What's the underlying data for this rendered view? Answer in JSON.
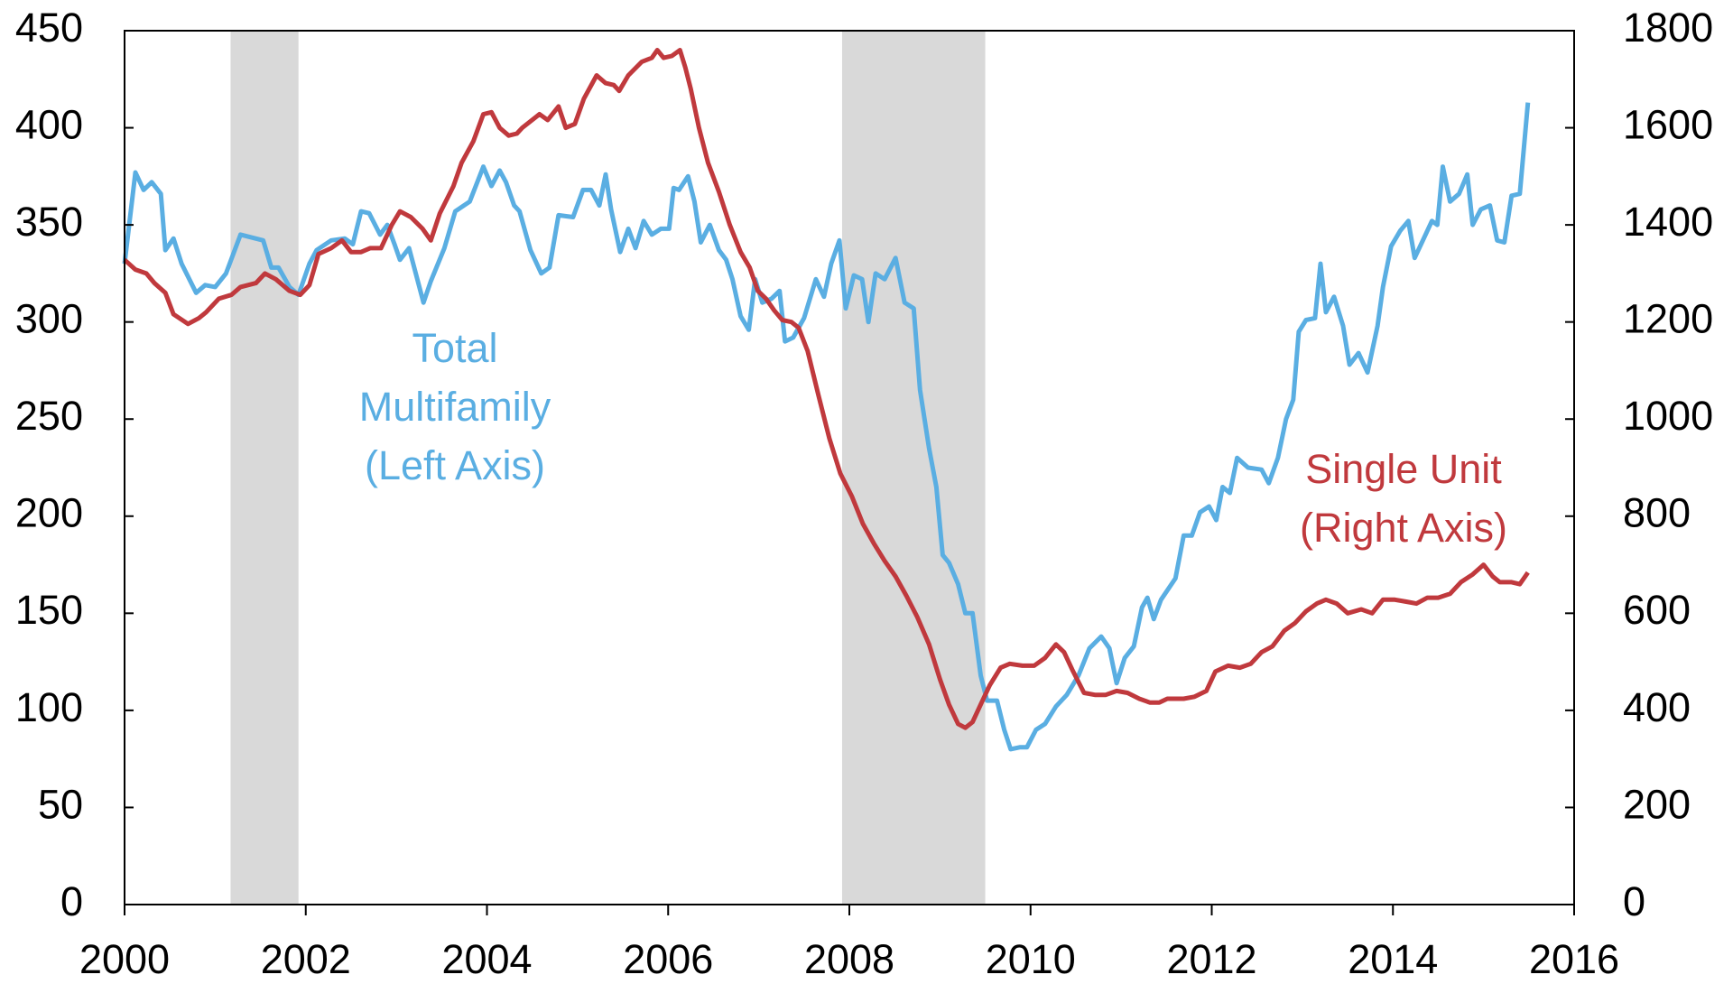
{
  "chart_data": {
    "type": "line",
    "xlim": [
      2000,
      2016
    ],
    "xticks": [
      2000,
      2002,
      2004,
      2006,
      2008,
      2010,
      2012,
      2014,
      2016
    ],
    "ylim": [
      0,
      450
    ],
    "yticks": [
      0,
      50,
      100,
      150,
      200,
      250,
      300,
      350,
      400,
      450
    ],
    "y2lim": [
      0,
      1800
    ],
    "y2ticks": [
      0,
      200,
      400,
      600,
      800,
      1000,
      1200,
      1400,
      1600,
      1800
    ],
    "shaded_regions": [
      {
        "x": [
          2001.17,
          2001.92
        ]
      },
      {
        "x": [
          2007.92,
          2009.5
        ]
      }
    ],
    "shade_color": "#d9d9d9",
    "annotations": [
      {
        "lines": [
          "Total",
          "Multifamily",
          "(Left Axis)"
        ],
        "color": "#5aaee2"
      },
      {
        "lines": [
          "Single Unit",
          "(Right Axis)"
        ],
        "color": "#c0393d"
      }
    ],
    "series": [
      {
        "name": "Total Multifamily",
        "color": "#5aaee2",
        "axis": "y",
        "x": [
          2000.0,
          2000.12,
          2000.21,
          2000.3,
          2000.4,
          2000.45,
          2000.54,
          2000.63,
          2000.79,
          2000.89,
          2001.0,
          2001.12,
          2001.28,
          2001.53,
          2001.62,
          2001.7,
          2001.82,
          2001.92,
          2002.04,
          2002.12,
          2002.28,
          2002.43,
          2002.52,
          2002.61,
          2002.7,
          2002.82,
          2002.9,
          2002.98,
          2003.04,
          2003.14,
          2003.3,
          2003.38,
          2003.53,
          2003.65,
          2003.81,
          2003.96,
          2004.05,
          2004.14,
          2004.21,
          2004.3,
          2004.36,
          2004.48,
          2004.6,
          2004.69,
          2004.79,
          2004.95,
          2005.06,
          2005.15,
          2005.24,
          2005.31,
          2005.37,
          2005.47,
          2005.56,
          2005.64,
          2005.73,
          2005.82,
          2005.92,
          2006.01,
          2006.06,
          2006.12,
          2006.22,
          2006.29,
          2006.36,
          2006.46,
          2006.56,
          2006.64,
          2006.71,
          2006.8,
          2006.89,
          2006.96,
          2007.04,
          2007.14,
          2007.23,
          2007.29,
          2007.38,
          2007.5,
          2007.63,
          2007.72,
          2007.8,
          2007.89,
          2007.96,
          2008.05,
          2008.14,
          2008.21,
          2008.29,
          2008.39,
          2008.51,
          2008.61,
          2008.71,
          2008.78,
          2008.88,
          2008.96,
          2009.03,
          2009.1,
          2009.2,
          2009.28,
          2009.36,
          2009.45,
          2009.52,
          2009.63,
          2009.71,
          2009.78,
          2009.88,
          2009.96,
          2010.06,
          2010.16,
          2010.28,
          2010.4,
          2010.53,
          2010.65,
          2010.78,
          2010.87,
          2010.95,
          2011.04,
          2011.14,
          2011.23,
          2011.29,
          2011.36,
          2011.44,
          2011.6,
          2011.69,
          2011.78,
          2011.87,
          2011.97,
          2012.05,
          2012.12,
          2012.2,
          2012.28,
          2012.4,
          2012.55,
          2012.63,
          2012.73,
          2012.82,
          2012.9,
          2012.96,
          2013.04,
          2013.14,
          2013.2,
          2013.26,
          2013.35,
          2013.45,
          2013.52,
          2013.62,
          2013.72,
          2013.83,
          2013.89,
          2013.98,
          2014.08,
          2014.17,
          2014.24,
          2014.33,
          2014.43,
          2014.49,
          2014.55,
          2014.63,
          2014.73,
          2014.82,
          2014.88,
          2014.97,
          2015.07,
          2015.15,
          2015.23,
          2015.31,
          2015.4,
          2015.49
        ],
        "values": [
          330,
          377,
          368,
          372,
          366,
          337,
          343,
          330,
          315,
          319,
          318,
          325,
          345,
          342,
          328,
          328,
          318,
          314,
          330,
          337,
          342,
          343,
          340,
          357,
          356,
          345,
          350,
          340,
          332,
          338,
          310,
          321,
          338,
          357,
          362,
          380,
          370,
          378,
          372,
          360,
          357,
          337,
          325,
          328,
          355,
          354,
          368,
          368,
          360,
          376,
          358,
          336,
          348,
          338,
          352,
          345,
          348,
          348,
          369,
          368,
          375,
          362,
          341,
          350,
          337,
          332,
          322,
          303,
          296,
          322,
          310,
          312,
          316,
          290,
          292,
          302,
          322,
          313,
          330,
          342,
          307,
          324,
          322,
          300,
          325,
          322,
          333,
          310,
          307,
          265,
          235,
          215,
          180,
          176,
          165,
          150,
          150,
          118,
          105,
          105,
          90,
          80,
          81,
          81,
          90,
          93,
          102,
          108,
          118,
          132,
          138,
          132,
          114,
          127,
          133,
          153,
          158,
          147,
          157,
          168,
          190,
          190,
          202,
          205,
          198,
          215,
          212,
          230,
          225,
          224,
          217,
          230,
          250,
          260,
          295,
          301,
          302,
          330,
          305,
          313,
          298,
          278,
          284,
          274,
          298,
          318,
          339,
          347,
          352,
          333,
          342,
          352,
          350,
          380,
          362,
          366,
          376,
          350,
          358,
          360,
          342,
          341,
          365,
          366,
          413
        ]
      },
      {
        "name": "Single Unit",
        "color": "#c0393d",
        "axis": "y2",
        "x": [
          2000.0,
          2000.12,
          2000.24,
          2000.33,
          2000.45,
          2000.54,
          2000.7,
          2000.82,
          2000.9,
          2001.04,
          2001.18,
          2001.28,
          2001.45,
          2001.55,
          2001.67,
          2001.82,
          2001.94,
          2002.04,
          2002.14,
          2002.28,
          2002.4,
          2002.5,
          2002.61,
          2002.71,
          2002.83,
          2002.95,
          2003.04,
          2003.16,
          2003.29,
          2003.38,
          2003.48,
          2003.63,
          2003.72,
          2003.85,
          2003.96,
          2004.05,
          2004.14,
          2004.24,
          2004.33,
          2004.39,
          2004.58,
          2004.67,
          2004.79,
          2004.87,
          2004.97,
          2005.07,
          2005.21,
          2005.31,
          2005.4,
          2005.46,
          2005.56,
          2005.71,
          2005.82,
          2005.88,
          2005.95,
          2006.04,
          2006.13,
          2006.19,
          2006.25,
          2006.34,
          2006.44,
          2006.56,
          2006.68,
          2006.8,
          2006.9,
          2006.99,
          2007.08,
          2007.17,
          2007.26,
          2007.36,
          2007.44,
          2007.54,
          2007.66,
          2007.78,
          2007.9,
          2008.03,
          2008.15,
          2008.27,
          2008.39,
          2008.51,
          2008.63,
          2008.75,
          2008.88,
          2009.0,
          2009.1,
          2009.2,
          2009.28,
          2009.36,
          2009.45,
          2009.55,
          2009.67,
          2009.77,
          2009.91,
          2010.04,
          2010.16,
          2010.28,
          2010.37,
          2010.46,
          2010.59,
          2010.71,
          2010.83,
          2010.95,
          2011.07,
          2011.2,
          2011.32,
          2011.42,
          2011.51,
          2011.69,
          2011.81,
          2011.94,
          2012.04,
          2012.18,
          2012.31,
          2012.43,
          2012.55,
          2012.67,
          2012.8,
          2012.92,
          2013.04,
          2013.16,
          2013.26,
          2013.38,
          2013.5,
          2013.65,
          2013.77,
          2013.89,
          2014.02,
          2014.14,
          2014.26,
          2014.38,
          2014.5,
          2014.63,
          2014.75,
          2014.88,
          2015.0,
          2015.1,
          2015.18,
          2015.31,
          2015.4,
          2015.49
        ],
        "values": [
          1328,
          1308,
          1300,
          1280,
          1260,
          1216,
          1196,
          1208,
          1220,
          1248,
          1256,
          1272,
          1280,
          1300,
          1288,
          1264,
          1256,
          1276,
          1340,
          1352,
          1368,
          1344,
          1344,
          1352,
          1352,
          1400,
          1428,
          1416,
          1392,
          1368,
          1424,
          1480,
          1528,
          1572,
          1628,
          1632,
          1600,
          1584,
          1588,
          1600,
          1628,
          1616,
          1644,
          1600,
          1608,
          1660,
          1708,
          1692,
          1688,
          1676,
          1708,
          1736,
          1744,
          1760,
          1744,
          1748,
          1760,
          1724,
          1680,
          1600,
          1528,
          1468,
          1400,
          1344,
          1312,
          1264,
          1248,
          1224,
          1204,
          1200,
          1188,
          1140,
          1048,
          960,
          888,
          840,
          784,
          744,
          708,
          676,
          636,
          592,
          536,
          464,
          412,
          372,
          364,
          376,
          412,
          452,
          488,
          496,
          492,
          492,
          508,
          536,
          520,
          484,
          436,
          432,
          432,
          440,
          436,
          424,
          416,
          416,
          424,
          424,
          428,
          440,
          480,
          492,
          488,
          496,
          520,
          532,
          564,
          580,
          604,
          620,
          628,
          620,
          600,
          608,
          600,
          628,
          628,
          624,
          620,
          632,
          632,
          640,
          664,
          680,
          700,
          676,
          664,
          664,
          660,
          684
        ]
      }
    ]
  }
}
